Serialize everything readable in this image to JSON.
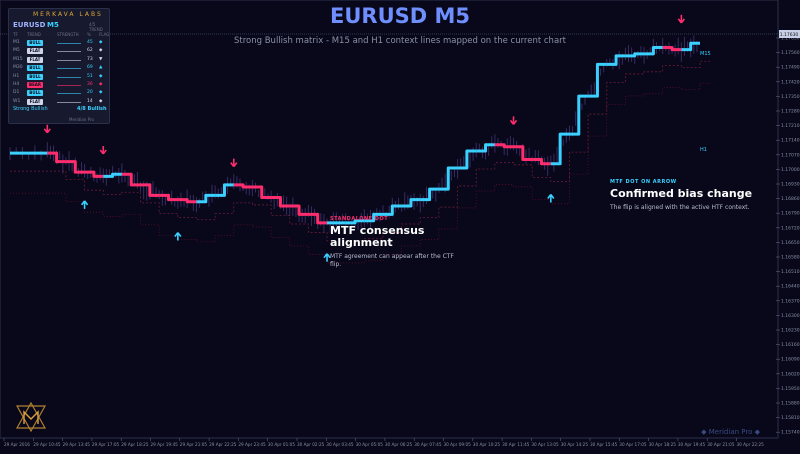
{
  "title": "EURUSD M5",
  "subtitle": "Strong Bullish matrix - M15 and H1 context lines mapped on the current chart",
  "panel": {
    "brand": "MERKAVA LABS",
    "symbol": "EURUSD",
    "timeframe": "M5",
    "tag": "4/5 TREND",
    "headers": [
      "TF",
      "TREND",
      "STRENGTH",
      "%",
      "FLAG"
    ],
    "rows": [
      {
        "tf": "M1",
        "trend": "BULL",
        "pct": "45",
        "flag": "◆",
        "color": "#3ad0ff"
      },
      {
        "tf": "M5",
        "trend": "FLAT",
        "pct": "62",
        "flag": "◆",
        "color": "#cfd6ea"
      },
      {
        "tf": "M15",
        "trend": "FLAT",
        "pct": "73",
        "flag": "▼",
        "color": "#cfd6ea"
      },
      {
        "tf": "M30",
        "trend": "BULL",
        "pct": "69",
        "flag": "▲",
        "color": "#3ad0ff"
      },
      {
        "tf": "H1",
        "trend": "BULL",
        "pct": "51",
        "flag": "◆",
        "color": "#3ad0ff"
      },
      {
        "tf": "H4",
        "trend": "BEAR",
        "pct": "36",
        "flag": "◆",
        "color": "#ff2d6e"
      },
      {
        "tf": "D1",
        "trend": "BULL",
        "pct": "20",
        "flag": "◆",
        "color": "#3ad0ff"
      },
      {
        "tf": "W1",
        "trend": "FLAT",
        "pct": "14",
        "flag": "◆",
        "color": "#cfd6ea"
      }
    ],
    "footer_label": "Strong Bullish",
    "footer_score": "4/8 Bullish",
    "footer_brand": "Meridian Pro"
  },
  "annotations": [
    {
      "kicker": "STANDALONE DOT",
      "heading": "MTF consensus alignment",
      "body": "MTF agreement can appear after the CTF flip.",
      "color": "#ff2d6e"
    },
    {
      "kicker": "MTF DOT ON ARROW",
      "heading": "Confirmed bias change",
      "body": "The flip is aligned with the active HTF context.",
      "color": "#3ad0ff"
    }
  ],
  "line_labels": {
    "m15": "M15",
    "h1": "H1"
  },
  "watermark": "◆ Meridian Pro ◆",
  "chart_data": {
    "type": "line",
    "x": [
      "29 Apr 2016",
      "29 Apr 10:45",
      "29 Apr 13:45",
      "29 Apr 17:05",
      "29 Apr 18:25",
      "29 Apr 19:45",
      "29 Apr 21:05",
      "29 Apr 22:25",
      "29 Apr 23:45",
      "30 Apr 01:05",
      "30 Apr 02:25",
      "30 Apr 03:45",
      "30 Apr 05:05",
      "30 Apr 06:25",
      "30 Apr 07:45",
      "30 Apr 09:05",
      "30 Apr 10:25",
      "30 Apr 11:45",
      "30 Apr 13:05",
      "30 Apr 14:25",
      "30 Apr 15:45",
      "30 Apr 17:05",
      "30 Apr 18:25",
      "30 Apr 19:45",
      "30 Apr 21:05",
      "30 Apr 22:25"
    ],
    "y_ticks": [
      "1.17630",
      "1.17560",
      "1.17490",
      "1.17420",
      "1.17350",
      "1.17280",
      "1.17210",
      "1.17140",
      "1.17070",
      "1.17000",
      "1.16930",
      "1.16860",
      "1.16790",
      "1.16720",
      "1.16650",
      "1.16580",
      "1.16510",
      "1.16440",
      "1.16370",
      "1.16300",
      "1.16230",
      "1.16160",
      "1.16090",
      "1.16020",
      "1.15950",
      "1.15880",
      "1.15810",
      "1.15740"
    ],
    "ylim": [
      1.1572,
      1.1766
    ],
    "series": [
      {
        "color_up": "#3ad0ff",
        "color_down": "#ff2d6e",
        "points": [
          [
            0,
            1.1703
          ],
          [
            2,
            1.1703
          ],
          [
            3,
            1.1699
          ],
          [
            4,
            1.1694
          ],
          [
            5,
            1.1692
          ],
          [
            6,
            1.1693
          ],
          [
            7,
            1.1688
          ],
          [
            8,
            1.1683
          ],
          [
            9,
            1.1681
          ],
          [
            10,
            1.168
          ],
          [
            11,
            1.1683
          ],
          [
            12,
            1.1688
          ],
          [
            13,
            1.1687
          ],
          [
            14,
            1.1682
          ],
          [
            15,
            1.1678
          ],
          [
            16,
            1.1674
          ],
          [
            17,
            1.167
          ],
          [
            18,
            1.167
          ],
          [
            19,
            1.1671
          ],
          [
            20,
            1.1674
          ],
          [
            21,
            1.1678
          ],
          [
            22,
            1.1681
          ],
          [
            23,
            1.1686
          ],
          [
            24,
            1.1696
          ],
          [
            25,
            1.1704
          ],
          [
            26,
            1.1707
          ],
          [
            27,
            1.1706
          ],
          [
            28,
            1.17
          ],
          [
            29,
            1.1698
          ],
          [
            30,
            1.1712
          ],
          [
            31,
            1.173
          ],
          [
            32,
            1.1745
          ],
          [
            33,
            1.1749
          ],
          [
            34,
            1.175
          ],
          [
            35,
            1.1753
          ],
          [
            36,
            1.1752
          ],
          [
            37,
            1.1755
          ]
        ]
      }
    ],
    "arrows_up": [
      [
        4,
        1.1688
      ],
      [
        9,
        1.1673
      ],
      [
        17,
        1.1663
      ],
      [
        29,
        1.1691
      ]
    ],
    "arrows_down": [
      [
        2,
        1.1706
      ],
      [
        5,
        1.1696
      ],
      [
        12,
        1.169
      ],
      [
        27,
        1.171
      ],
      [
        36,
        1.1758
      ]
    ]
  }
}
